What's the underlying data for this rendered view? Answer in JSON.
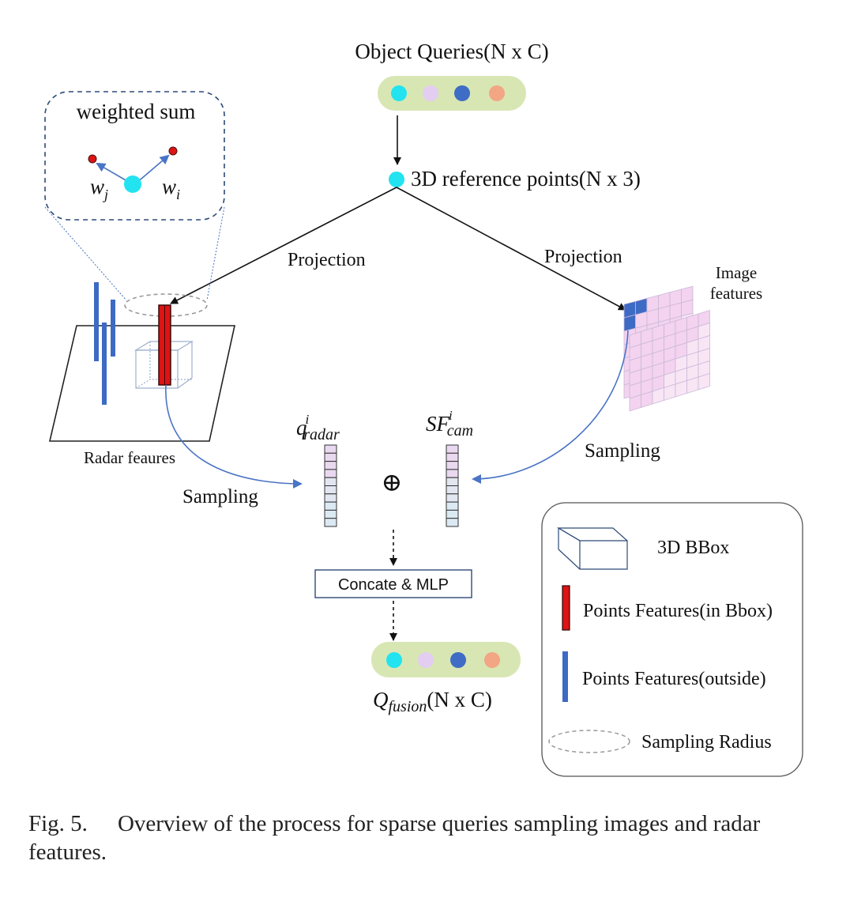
{
  "object_queries": {
    "label": "Object Queries(N x C)",
    "colors": [
      "#22e3ef",
      "#e3cdf0",
      "#3f6cc4",
      "#f2a684"
    ]
  },
  "reference_points": {
    "label": "3D reference points(N x 3)"
  },
  "projection_left": "Projection",
  "projection_right": "Projection",
  "weighted_sum": {
    "title": "weighted sum",
    "w_j_base": "w",
    "w_j_sub": "j",
    "w_i_base": "w",
    "w_i_sub": "i"
  },
  "radar_features_label": "Radar feaures",
  "image_features_label": {
    "line1": "Image",
    "line2": "features"
  },
  "sampling_left": "Sampling",
  "sampling_right": "Sampling",
  "q_radar": {
    "base": "q",
    "sup": "i",
    "sub": "radar"
  },
  "sf_cam": {
    "base": "SF",
    "sup": "i",
    "sub": "cam"
  },
  "oplus": "⊕",
  "concat_label": "Concate & MLP",
  "fusion": {
    "base": "Q",
    "sub": "fusion",
    "suffix": "(N x C)",
    "colors": [
      "#22e3ef",
      "#e3cdf0",
      "#3f6cc4",
      "#f2a684"
    ]
  },
  "legend": {
    "bbox": "3D BBox",
    "points_in": "Points Features(in Bbox)",
    "points_out": "Points Features(outside)",
    "radius": "Sampling Radius"
  },
  "caption": {
    "fig": "Fig. 5.",
    "text": "Overview of the process for sparse queries sampling images and radar features."
  },
  "colors": {
    "query_bar": "#d8e6b4",
    "arrow_blue": "#4a74c4",
    "radar_bar": "#3d6ac4",
    "points_red": "#dd1414",
    "grid_pink": "#f0c8ec",
    "grid_blue": "#3d6ac4"
  }
}
